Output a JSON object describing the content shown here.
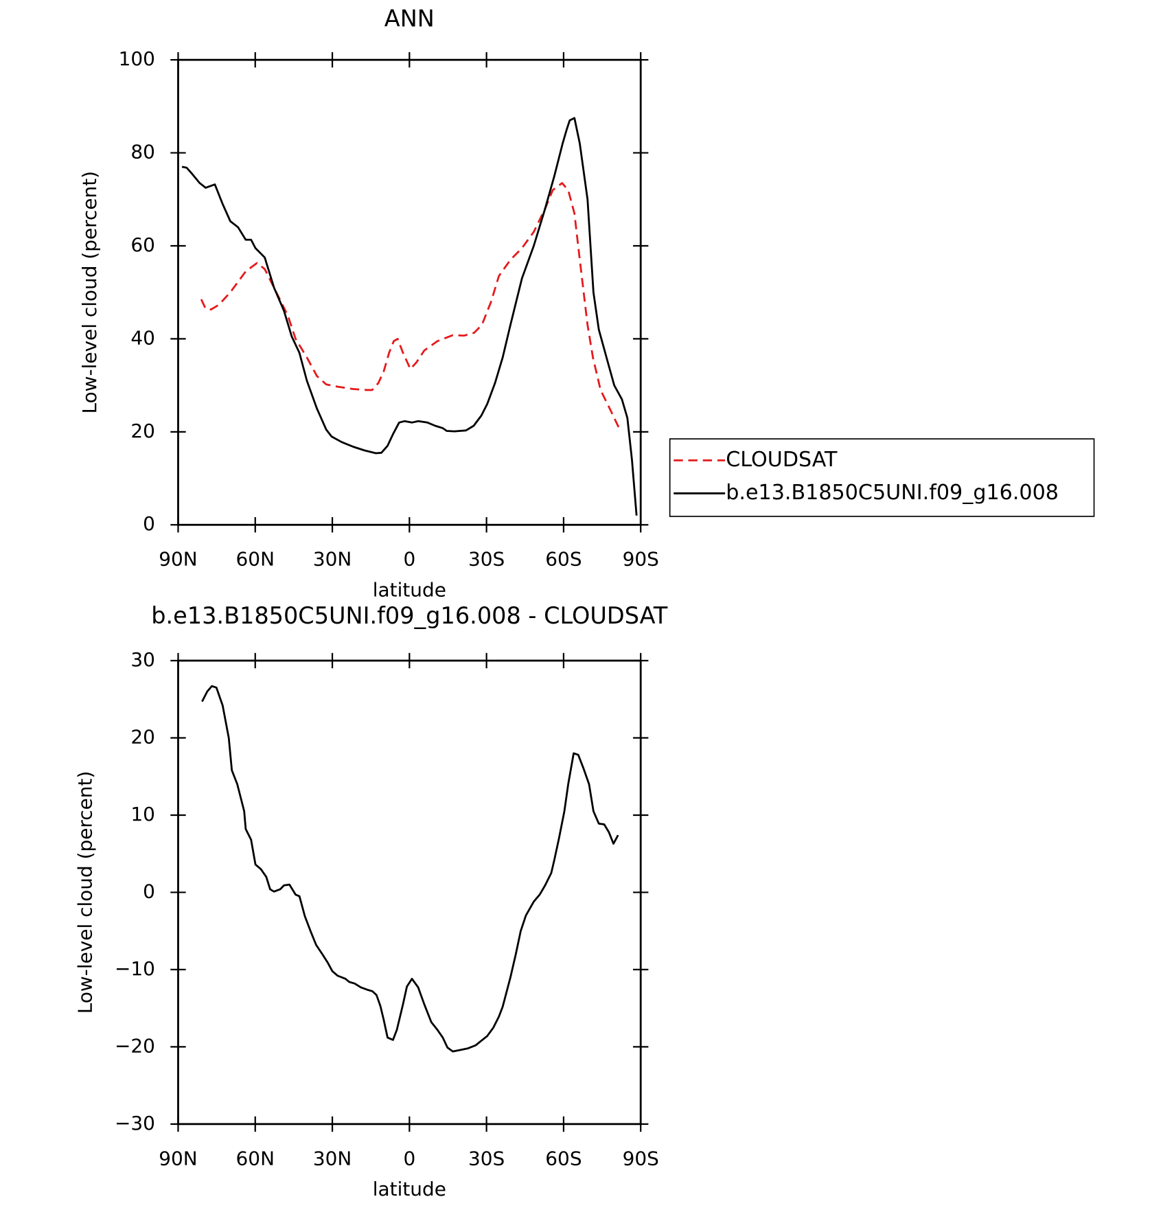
{
  "chart_data": [
    {
      "type": "line",
      "title": "ANN",
      "xlabel": "latitude",
      "ylabel": "Low-level cloud (percent)",
      "xlim": [
        90,
        -90
      ],
      "xticks": [
        {
          "value": 90,
          "label": "90N"
        },
        {
          "value": 60,
          "label": "60N"
        },
        {
          "value": 30,
          "label": "30N"
        },
        0,
        {
          "value": -30,
          "label": "30S"
        },
        {
          "value": -60,
          "label": "60S"
        },
        {
          "value": -90,
          "label": "90S"
        }
      ],
      "ylim": [
        0,
        100
      ],
      "yticks": [
        0,
        20,
        40,
        60,
        80,
        100
      ],
      "legend": "right",
      "series": [
        {
          "name": "CLOUDSAT",
          "color": "#e41a1c",
          "dash": true,
          "x": [
            81,
            79.3,
            77.2,
            74.2,
            69.7,
            63.7,
            59.3,
            56.3,
            51.8,
            47.3,
            44.3,
            39.9,
            36,
            32.4,
            27.9,
            21.9,
            16.6,
            14.5,
            12.1,
            10,
            7.9,
            6.1,
            4.6,
            2.5,
            -0.4,
            -2.8,
            -5.8,
            -10.9,
            -16.9,
            -21.3,
            -25.2,
            -28.2,
            -31.8,
            -34.8,
            -39.3,
            -43.8,
            -48.4,
            -52.8,
            -55.8,
            -59.4,
            -61.8,
            -64.2,
            -66.3,
            -69.3,
            -71.4,
            -74.4,
            -78.4,
            -81.4
          ],
          "values": [
            48.5,
            46.5,
            46.3,
            47.3,
            50,
            54.5,
            56.3,
            55,
            50,
            45,
            40,
            36,
            32,
            30.2,
            29.7,
            29.2,
            29,
            29,
            30.5,
            33,
            37,
            39.5,
            40,
            37,
            33.5,
            35,
            37.5,
            39.5,
            40.8,
            40.7,
            41.3,
            43,
            48,
            53.5,
            57,
            59.5,
            63,
            68,
            72,
            73.5,
            72,
            67,
            57,
            43,
            36,
            29,
            24.5,
            21
          ]
        },
        {
          "name": "b.e13.B1850C5UNI.f09_g16.008",
          "color": "#000000",
          "dash": false,
          "x": [
            88.5,
            86.7,
            84.6,
            81.6,
            79.3,
            75.7,
            72.7,
            69.7,
            66.7,
            63.7,
            61.6,
            59.9,
            56.3,
            52.7,
            48.8,
            45.8,
            42.8,
            39.9,
            36,
            32.4,
            30.3,
            26.4,
            21.9,
            17.5,
            13,
            10.9,
            8.5,
            6.4,
            4,
            1.9,
            -1,
            -3.4,
            -7,
            -10,
            -13,
            -14.5,
            -17.5,
            -22,
            -25,
            -28,
            -30.3,
            -33.3,
            -36.3,
            -39.3,
            -43.8,
            -48.4,
            -52.8,
            -56.4,
            -59.6,
            -61.2,
            -62.4,
            -64.2,
            -66.3,
            -69.3,
            -71.6,
            -73.7,
            -76.7,
            -79.7,
            -82.7,
            -84.8,
            -86.6,
            -88.4
          ],
          "values": [
            77,
            76.8,
            75.5,
            73.5,
            72.5,
            73.2,
            69,
            65.3,
            64,
            61.3,
            61.3,
            59.5,
            57.5,
            51,
            46,
            40.5,
            37,
            31,
            25,
            20.5,
            19,
            17.8,
            16.8,
            16,
            15.4,
            15.5,
            17,
            19.5,
            22,
            22.3,
            22,
            22.3,
            22,
            21.3,
            20.8,
            20.2,
            20.1,
            20.3,
            21.3,
            23.5,
            26,
            30.5,
            36,
            43,
            53,
            60,
            68,
            75,
            82,
            85,
            87,
            87.5,
            82,
            70,
            50,
            42,
            36,
            30,
            27,
            23,
            14,
            2
          ]
        }
      ]
    },
    {
      "type": "line",
      "title": "b.e13.B1850C5UNI.f09_g16.008 - CLOUDSAT",
      "xlabel": "latitude",
      "ylabel": "Low-level cloud (percent)",
      "xlim": [
        90,
        -90
      ],
      "xticks": [
        {
          "value": 90,
          "label": "90N"
        },
        {
          "value": 60,
          "label": "60N"
        },
        {
          "value": 30,
          "label": "30N"
        },
        0,
        {
          "value": -30,
          "label": "30S"
        },
        {
          "value": -60,
          "label": "60S"
        },
        {
          "value": -90,
          "label": "90S"
        }
      ],
      "ylim": [
        -30,
        30
      ],
      "yticks": [
        {
          "value": -30,
          "label": "−30"
        },
        {
          "value": -20,
          "label": "−20"
        },
        {
          "value": -10,
          "label": "−10"
        },
        0,
        10,
        20,
        30
      ],
      "series": [
        {
          "color": "#000000",
          "dash": false,
          "x": [
            80.7,
            78.7,
            76.9,
            75.1,
            72.7,
            70.3,
            69.1,
            67,
            64.3,
            63.7,
            61.6,
            59.9,
            57.8,
            55.7,
            54.2,
            52.7,
            50.3,
            48.8,
            46.7,
            44.3,
            42.8,
            40.7,
            38.4,
            36.3,
            33.9,
            31.8,
            30,
            27.9,
            24.9,
            23.4,
            21.3,
            18.9,
            16.5,
            14.4,
            12.8,
            11.3,
            10,
            8.5,
            6.4,
            4.9,
            2.5,
            1,
            -1,
            -3.4,
            -5.8,
            -8.5,
            -10.9,
            -13,
            -14.8,
            -16.9,
            -19.9,
            -22.8,
            -25.8,
            -28,
            -30.3,
            -32.7,
            -34.8,
            -36.3,
            -39.3,
            -41.4,
            -43.3,
            -45.3,
            -48.4,
            -50.7,
            -52.8,
            -55.2,
            -56.4,
            -58.2,
            -60.3,
            -61.8,
            -63.9,
            -65.7,
            -67.8,
            -69.9,
            -71.6,
            -73.7,
            -75.8,
            -77.6,
            -79.4,
            -81.2
          ],
          "values": [
            24.7,
            26,
            26.7,
            26.5,
            24.2,
            20,
            15.8,
            14,
            10.5,
            8.2,
            6.8,
            3.6,
            3,
            2,
            0.4,
            0.1,
            0.4,
            0.9,
            1,
            -0.3,
            -0.5,
            -3.1,
            -5.1,
            -6.8,
            -8,
            -9.1,
            -10.2,
            -10.8,
            -11.2,
            -11.6,
            -11.8,
            -12.3,
            -12.6,
            -12.8,
            -13.3,
            -14.7,
            -16.5,
            -18.8,
            -19.1,
            -17.8,
            -14.5,
            -12.2,
            -11.2,
            -12.3,
            -14.5,
            -16.8,
            -17.8,
            -18.8,
            -20.1,
            -20.6,
            -20.4,
            -20.2,
            -19.8,
            -19.2,
            -18.6,
            -17.5,
            -16.1,
            -14.8,
            -11,
            -8,
            -5,
            -3,
            -1.2,
            -0.3,
            0.9,
            2.5,
            4.2,
            7,
            10.5,
            14,
            18,
            17.8,
            16,
            14,
            10.5,
            8.9,
            8.8,
            7.8,
            6.3,
            7.4
          ]
        }
      ]
    }
  ]
}
